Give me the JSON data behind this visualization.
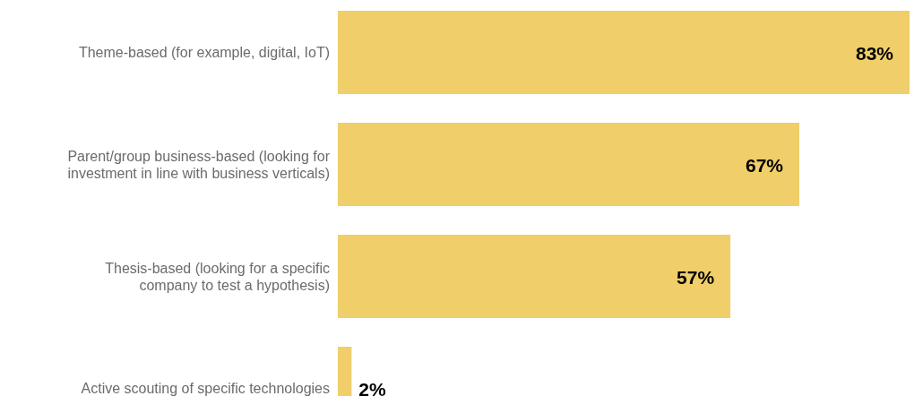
{
  "chart_data": {
    "type": "bar",
    "orientation": "horizontal",
    "categories": [
      "Theme-based (for example, digital, IoT)",
      "Parent/group business-based (looking for investment in line with business verticals)",
      "Thesis-based (looking for a specific company to test a hypothesis)",
      "Active scouting of specific technologies"
    ],
    "values": [
      83,
      67,
      57,
      2
    ],
    "color": "#f0ce69",
    "value_labels": [
      "83%",
      "67%",
      "57%",
      "2%"
    ]
  }
}
